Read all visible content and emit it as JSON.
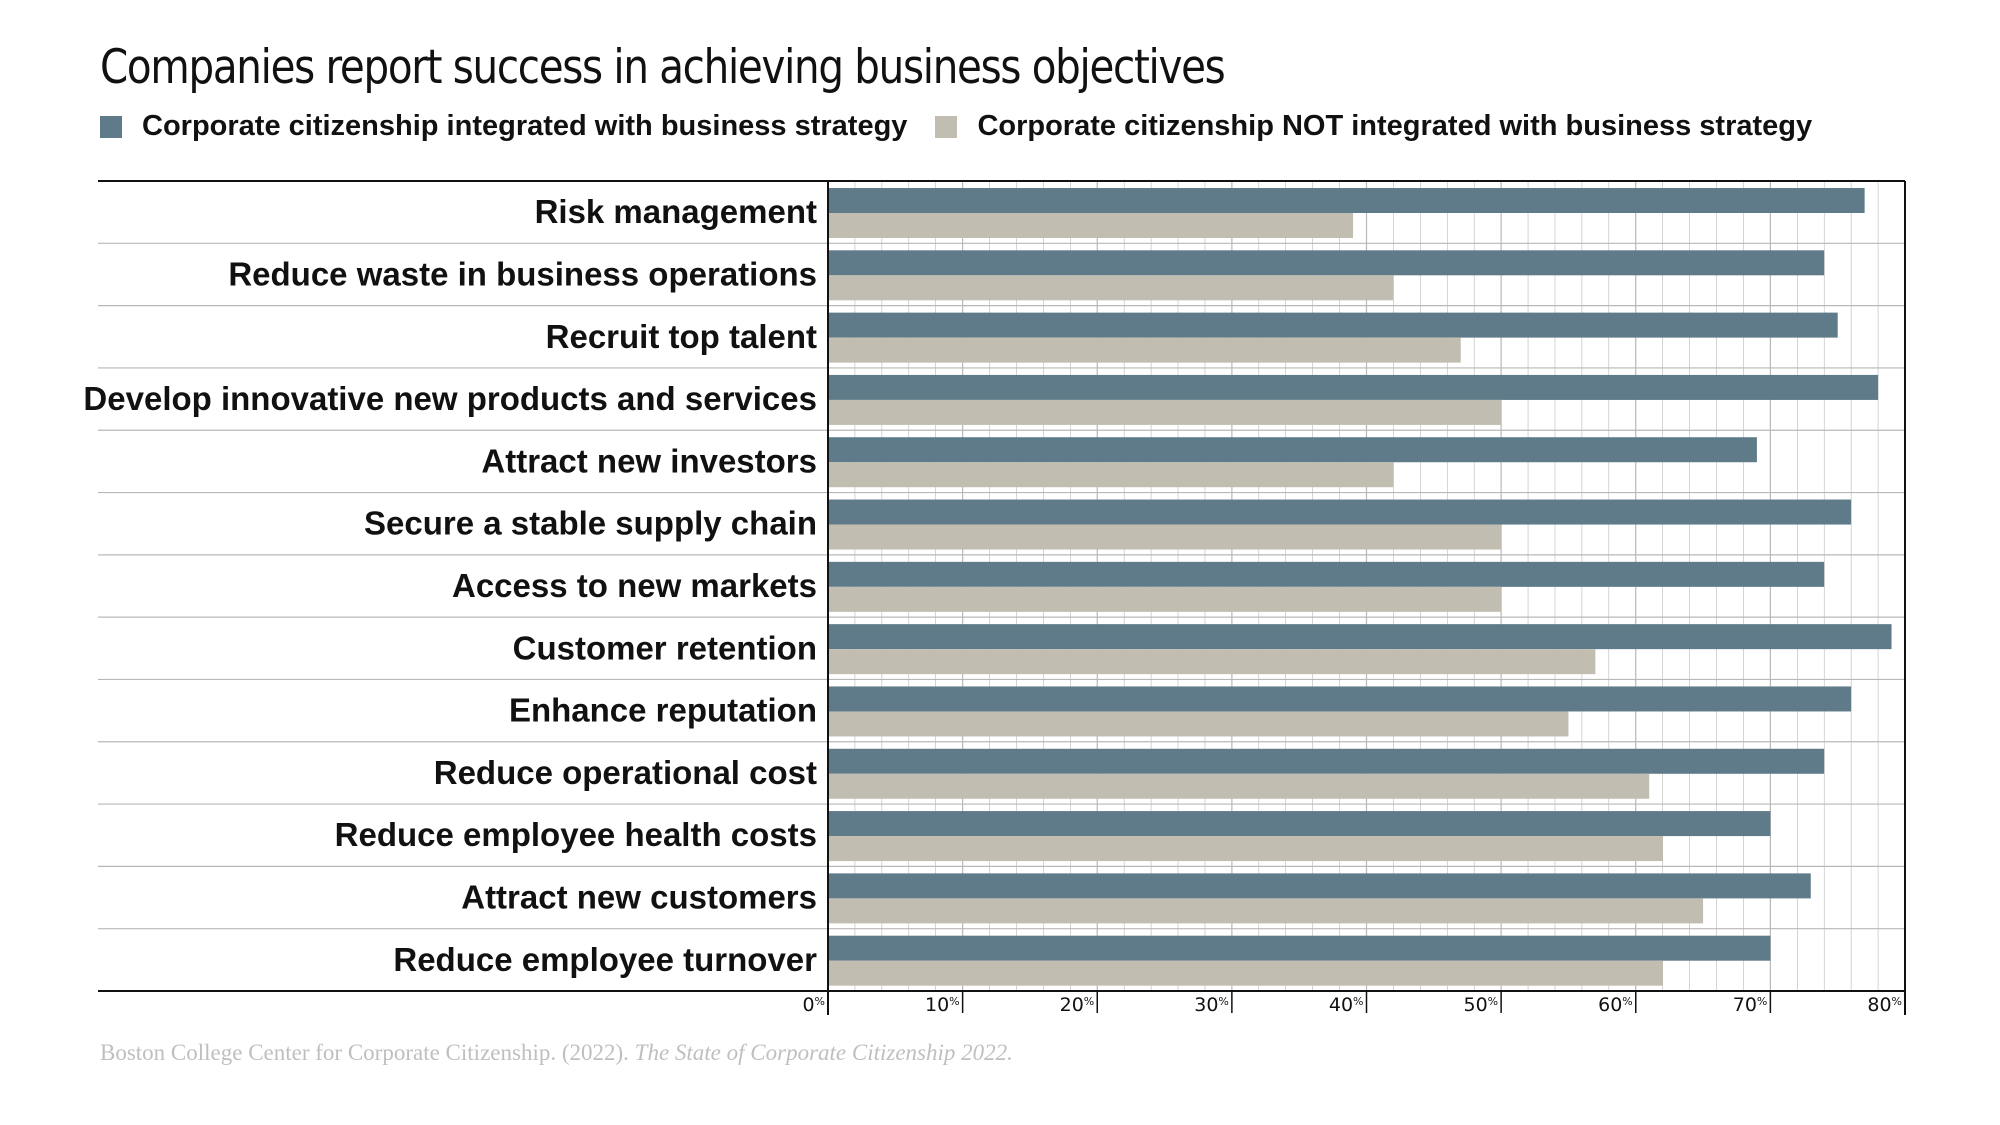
{
  "colors": {
    "integrated": "#5f7a89",
    "not_integrated": "#c2bdb1",
    "grid": "#b8b8b8",
    "axis": "#111111"
  },
  "legend": {
    "integrated_label": "Corporate citizenship integrated with business strategy",
    "not_integrated_label": "Corporate citizenship NOT integrated with business strategy"
  },
  "source": {
    "plain": "Boston College Center for Corporate Citizenship. (2022). ",
    "italic": "The State of Corporate Citizenship 2022."
  },
  "chart_data": {
    "type": "bar",
    "orientation": "horizontal",
    "title": "Companies report success in achieving business objectives",
    "xlabel": "",
    "ylabel": "",
    "xlim": [
      0,
      80
    ],
    "ticks": [
      0,
      10,
      20,
      30,
      40,
      50,
      60,
      70,
      80
    ],
    "tick_suffix": "%",
    "grid": true,
    "legend_position": "top-left",
    "categories": [
      "Risk management",
      "Reduce waste in business operations",
      "Recruit top talent",
      "Develop innovative new products and services",
      "Attract new investors",
      "Secure a stable supply chain",
      "Access to new markets",
      "Customer retention",
      "Enhance reputation",
      "Reduce operational cost",
      "Reduce employee health costs",
      "Attract new customers",
      "Reduce employee turnover"
    ],
    "series": [
      {
        "name": "Corporate citizenship integrated with business strategy",
        "values": [
          77,
          74,
          75,
          78,
          69,
          76,
          74,
          79,
          76,
          74,
          70,
          73,
          70
        ]
      },
      {
        "name": "Corporate citizenship NOT integrated with business strategy",
        "values": [
          39,
          42,
          47,
          50,
          42,
          50,
          50,
          57,
          55,
          61,
          62,
          65,
          62
        ]
      }
    ]
  }
}
